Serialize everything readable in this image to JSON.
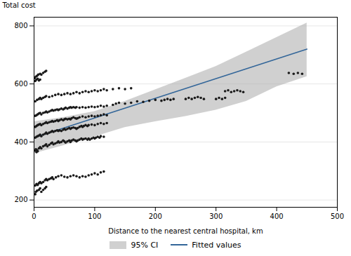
{
  "chart_data": {
    "type": "scatter",
    "xlabel": "Distance to the nearest central hospital, km",
    "ylabel": "Total cost",
    "xlim": [
      0,
      500
    ],
    "ylim": [
      175,
      830
    ],
    "xticks": [
      0,
      100,
      200,
      300,
      400,
      500
    ],
    "yticks": [
      200,
      400,
      600,
      800
    ],
    "grid": true,
    "legend": "bottom",
    "series": [
      {
        "name": "95% CI",
        "type": "area",
        "color": "#aaaaaa",
        "x": [
          0,
          50,
          100,
          150,
          200,
          250,
          300,
          350,
          400,
          450
        ],
        "upper": [
          470,
          485,
          505,
          540,
          580,
          620,
          660,
          710,
          760,
          810
        ],
        "lower": [
          360,
          388,
          418,
          450,
          470,
          488,
          510,
          540,
          590,
          625
        ]
      },
      {
        "name": "Fitted values",
        "type": "line",
        "color": "#336699",
        "x": [
          0,
          450
        ],
        "values": [
          415,
          720
        ]
      },
      {
        "type": "scatter",
        "color": "#1a1a1a",
        "x": [
          2,
          3,
          5,
          8,
          10,
          12,
          15,
          18,
          20,
          2,
          4,
          6,
          8,
          10,
          12,
          15,
          18,
          20,
          22,
          25,
          28,
          30,
          32,
          36,
          40,
          45,
          50,
          55,
          60,
          65,
          70,
          75,
          80,
          85,
          90,
          95,
          100,
          105,
          110,
          115,
          2,
          3,
          4,
          5,
          6,
          8,
          10,
          12,
          15,
          18,
          20,
          22,
          25,
          28,
          30,
          32,
          35,
          38,
          40,
          42,
          45,
          48,
          50,
          52,
          55,
          58,
          60,
          62,
          65,
          68,
          70,
          72,
          75,
          78,
          80,
          82,
          85,
          88,
          90,
          92,
          95,
          98,
          100,
          102,
          105,
          108,
          110,
          115,
          2,
          4,
          6,
          8,
          10,
          12,
          15,
          18,
          20,
          22,
          25,
          28,
          30,
          32,
          35,
          38,
          40,
          42,
          45,
          48,
          50,
          52,
          55,
          58,
          60,
          62,
          65,
          68,
          70,
          72,
          75,
          78,
          80,
          82,
          85,
          88,
          90,
          95,
          100,
          105,
          110,
          115,
          120,
          2,
          4,
          6,
          8,
          10,
          12,
          15,
          18,
          20,
          22,
          25,
          28,
          30,
          32,
          35,
          38,
          40,
          42,
          45,
          48,
          50,
          52,
          55,
          58,
          60,
          62,
          65,
          68,
          70,
          72,
          75,
          80,
          85,
          90,
          95,
          100,
          105,
          110,
          115,
          120,
          2,
          4,
          6,
          8,
          10,
          12,
          15,
          18,
          20,
          22,
          25,
          28,
          30,
          32,
          35,
          38,
          40,
          42,
          45,
          48,
          50,
          52,
          55,
          58,
          60,
          62,
          65,
          68,
          70,
          75,
          80,
          85,
          90,
          95,
          100,
          105,
          110,
          115,
          120,
          130,
          135,
          140,
          150,
          160,
          170,
          180,
          190,
          200,
          210,
          215,
          220,
          225,
          230,
          1,
          3,
          5,
          7,
          10,
          12,
          15,
          18,
          20,
          2,
          4,
          6,
          8,
          10,
          2,
          5,
          8,
          10,
          12,
          15,
          18,
          20,
          25,
          30,
          35,
          40,
          45,
          50,
          55,
          60,
          65,
          70,
          75,
          80,
          85,
          90,
          95,
          100,
          105,
          110,
          115,
          120,
          130,
          140,
          150,
          160,
          315,
          320,
          325,
          330,
          335,
          340,
          345,
          300,
          305,
          310,
          315,
          250,
          255,
          260,
          265,
          270,
          275,
          280,
          420,
          428,
          435,
          442
        ],
        "values": [
          220,
          228,
          232,
          235,
          240,
          228,
          235,
          240,
          245,
          250,
          255,
          252,
          258,
          262,
          258,
          262,
          268,
          272,
          268,
          272,
          275,
          278,
          272,
          278,
          282,
          285,
          280,
          278,
          282,
          285,
          282,
          278,
          282,
          280,
          285,
          288,
          292,
          288,
          295,
          298,
          370,
          375,
          365,
          372,
          368,
          378,
          382,
          378,
          385,
          388,
          392,
          385,
          390,
          395,
          398,
          392,
          395,
          398,
          402,
          398,
          400,
          405,
          402,
          398,
          402,
          405,
          400,
          405,
          408,
          405,
          402,
          405,
          408,
          412,
          408,
          410,
          412,
          408,
          412,
          408,
          412,
          415,
          412,
          415,
          418,
          415,
          420,
          418,
          415,
          418,
          420,
          422,
          425,
          420,
          425,
          428,
          432,
          428,
          432,
          435,
          438,
          435,
          438,
          440,
          438,
          440,
          438,
          442,
          445,
          442,
          445,
          448,
          445,
          448,
          450,
          448,
          445,
          448,
          452,
          455,
          452,
          455,
          458,
          455,
          458,
          460,
          458,
          462,
          465,
          462,
          465,
          452,
          455,
          458,
          460,
          462,
          458,
          462,
          465,
          468,
          465,
          468,
          470,
          472,
          470,
          472,
          475,
          472,
          475,
          478,
          475,
          478,
          480,
          478,
          480,
          478,
          482,
          485,
          482,
          480,
          482,
          485,
          488,
          485,
          488,
          490,
          488,
          490,
          492,
          495,
          492,
          490,
          492,
          495,
          498,
          500,
          495,
          500,
          502,
          505,
          502,
          505,
          508,
          510,
          508,
          510,
          512,
          510,
          512,
          515,
          512,
          515,
          518,
          515,
          518,
          520,
          518,
          520,
          518,
          520,
          518,
          520,
          518,
          520,
          522,
          520,
          522,
          525,
          522,
          525,
          528,
          532,
          535,
          532,
          535,
          540,
          538,
          542,
          545,
          542,
          545,
          548,
          545,
          548,
          620,
          625,
          628,
          632,
          635,
          632,
          638,
          642,
          645,
          610,
          615,
          618,
          612,
          615,
          540,
          545,
          548,
          552,
          548,
          552,
          555,
          558,
          555,
          558,
          562,
          565,
          562,
          565,
          568,
          565,
          568,
          572,
          568,
          572,
          575,
          572,
          575,
          578,
          575,
          578,
          582,
          578,
          582,
          585,
          582,
          585,
          575,
          578,
          572,
          575,
          578,
          575,
          572,
          548,
          552,
          548,
          552,
          548,
          552,
          548,
          552,
          555,
          552,
          548,
          638,
          635,
          638,
          635
        ]
      }
    ]
  }
}
